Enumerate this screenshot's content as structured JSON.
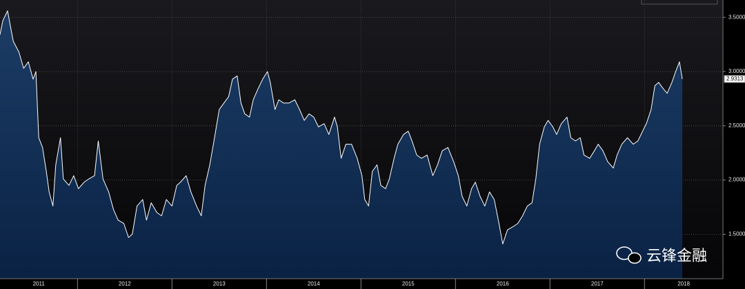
{
  "chart_data": {
    "type": "area",
    "x": [
      2011.18,
      2011.21,
      2011.26,
      2011.32,
      2011.38,
      2011.43,
      2011.48,
      2011.53,
      2011.56,
      2011.59,
      2011.63,
      2011.67,
      2011.7,
      2011.74,
      2011.77,
      2011.82,
      2011.85,
      2011.91,
      2011.96,
      2012.01,
      2012.07,
      2012.12,
      2012.18,
      2012.22,
      2012.27,
      2012.33,
      2012.38,
      2012.43,
      2012.49,
      2012.54,
      2012.58,
      2012.63,
      2012.69,
      2012.73,
      2012.78,
      2012.84,
      2012.89,
      2012.94,
      2013.0,
      2013.05,
      2013.09,
      2013.15,
      2013.2,
      2013.26,
      2013.31,
      2013.35,
      2013.4,
      2013.45,
      2013.5,
      2013.55,
      2013.6,
      2013.64,
      2013.69,
      2013.73,
      2013.77,
      2013.82,
      2013.86,
      2013.91,
      2013.96,
      2014.01,
      2014.04,
      2014.09,
      2014.13,
      2014.18,
      2014.24,
      2014.3,
      2014.35,
      2014.4,
      2014.45,
      2014.5,
      2014.55,
      2014.61,
      2014.66,
      2014.72,
      2014.75,
      2014.79,
      2014.84,
      2014.9,
      2014.96,
      2015.01,
      2015.04,
      2015.08,
      2015.12,
      2015.17,
      2015.21,
      2015.26,
      2015.3,
      2015.35,
      2015.39,
      2015.45,
      2015.5,
      2015.54,
      2015.59,
      2015.64,
      2015.7,
      2015.76,
      2015.81,
      2015.86,
      2015.92,
      2015.98,
      2016.03,
      2016.07,
      2016.12,
      2016.17,
      2016.21,
      2016.26,
      2016.31,
      2016.36,
      2016.41,
      2016.46,
      2016.5,
      2016.55,
      2016.61,
      2016.66,
      2016.71,
      2016.76,
      2016.81,
      2016.85,
      2016.89,
      2016.94,
      2016.98,
      2017.03,
      2017.07,
      2017.12,
      2017.18,
      2017.22,
      2017.27,
      2017.32,
      2017.36,
      2017.42,
      2017.47,
      2017.51,
      2017.56,
      2017.61,
      2017.67,
      2017.71,
      2017.76,
      2017.82,
      2017.88,
      2017.93,
      2017.98,
      2018.02,
      2018.07,
      2018.11,
      2018.15,
      2018.2,
      2018.24,
      2018.29,
      2018.33,
      2018.37,
      2018.4
    ],
    "series": [
      {
        "color": "#ffffff",
        "fill_color": "#0f2b4f",
        "values": [
          3.34,
          3.47,
          3.56,
          3.28,
          3.18,
          3.03,
          3.09,
          2.93,
          3.0,
          2.39,
          2.3,
          2.08,
          1.89,
          1.76,
          2.14,
          2.39,
          2.01,
          1.95,
          2.04,
          1.92,
          1.98,
          2.01,
          2.04,
          2.36,
          2.01,
          1.89,
          1.73,
          1.63,
          1.6,
          1.47,
          1.5,
          1.76,
          1.82,
          1.63,
          1.79,
          1.7,
          1.67,
          1.82,
          1.76,
          1.95,
          1.98,
          2.04,
          1.89,
          1.76,
          1.67,
          1.95,
          2.14,
          2.39,
          2.65,
          2.71,
          2.77,
          2.93,
          2.96,
          2.71,
          2.61,
          2.58,
          2.74,
          2.84,
          2.93,
          3.0,
          2.9,
          2.65,
          2.74,
          2.71,
          2.71,
          2.74,
          2.65,
          2.55,
          2.61,
          2.58,
          2.49,
          2.52,
          2.42,
          2.58,
          2.49,
          2.2,
          2.33,
          2.33,
          2.2,
          2.04,
          1.82,
          1.76,
          2.08,
          2.14,
          1.95,
          1.92,
          2.01,
          2.2,
          2.33,
          2.42,
          2.45,
          2.36,
          2.23,
          2.2,
          2.23,
          2.04,
          2.14,
          2.27,
          2.3,
          2.17,
          2.04,
          1.85,
          1.76,
          1.92,
          1.98,
          1.85,
          1.76,
          1.89,
          1.82,
          1.6,
          1.41,
          1.54,
          1.57,
          1.6,
          1.67,
          1.76,
          1.79,
          2.01,
          2.33,
          2.49,
          2.55,
          2.49,
          2.42,
          2.52,
          2.58,
          2.39,
          2.36,
          2.39,
          2.23,
          2.2,
          2.27,
          2.33,
          2.27,
          2.17,
          2.11,
          2.23,
          2.33,
          2.39,
          2.33,
          2.36,
          2.45,
          2.52,
          2.65,
          2.87,
          2.9,
          2.84,
          2.8,
          2.9,
          3.0,
          3.09,
          2.9313
        ]
      }
    ],
    "xlim": [
      2011.18,
      2018.83
    ],
    "xticks": [
      2011,
      2012,
      2013,
      2014,
      2015,
      2016,
      2017,
      2018
    ],
    "ylim": [
      1.09,
      3.66
    ],
    "yticks": [
      {
        "value": 1.5,
        "label": "1.5000"
      },
      {
        "value": 2.0,
        "label": "2.0000"
      },
      {
        "value": 2.5,
        "label": "2.5000"
      },
      {
        "value": 3.0,
        "label": "3.0000"
      },
      {
        "value": 3.5,
        "label": "3.5000"
      }
    ],
    "grid": true,
    "watermark": "云锋金融"
  }
}
